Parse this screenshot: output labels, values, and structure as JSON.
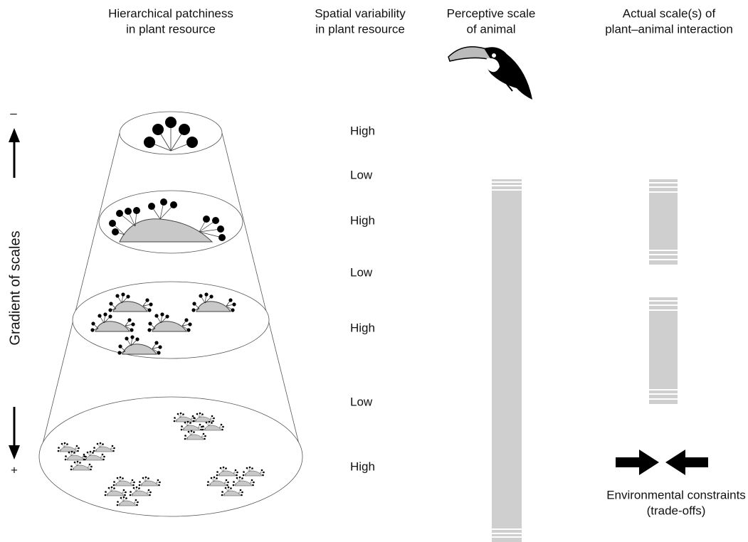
{
  "headers": [
    {
      "lines": [
        "Hierarchical patchiness",
        "in plant resource"
      ]
    },
    {
      "lines": [
        "Spatial variability",
        "in plant resource"
      ]
    },
    {
      "lines": [
        "Perceptive scale",
        "of animal"
      ]
    },
    {
      "lines": [
        "Actual scale(s) of",
        "plant–animal interaction"
      ]
    }
  ],
  "axis": {
    "label": "Gradient of scales",
    "top": "–",
    "bottom": "+"
  },
  "levels": [
    "High",
    "Low",
    "High",
    "Low",
    "High",
    "Low",
    "High"
  ],
  "constraints": {
    "lines": [
      "Environmental constraints",
      "(trade-offs)"
    ]
  }
}
